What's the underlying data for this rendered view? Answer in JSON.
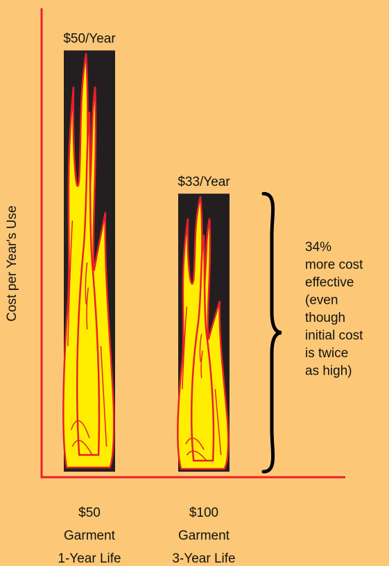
{
  "chart_data": {
    "type": "bar",
    "y_axis_label": "Cost per Year's Use",
    "categories": [
      [
        "$50",
        "Garment",
        "1-Year Life"
      ],
      [
        "$100",
        "Garment",
        "3-Year Life"
      ]
    ],
    "values": [
      50,
      33
    ],
    "value_labels": [
      "$50/Year",
      "$33/Year"
    ],
    "color": "#231f20",
    "ylim": [
      0,
      55
    ],
    "annotation": [
      "34%",
      "more cost",
      "effective",
      "(even",
      "though",
      "initial cost",
      "is twice",
      "as high)"
    ]
  }
}
